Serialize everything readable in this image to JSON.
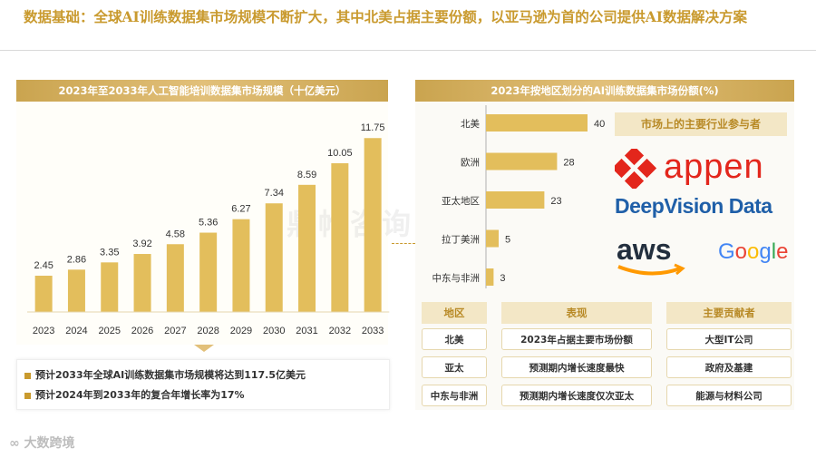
{
  "title": "数据基础：全球AI训练数据集市场规模不断扩大，其中北美占据主要份额，以亚马逊为首的公司提供AI数据解决方案",
  "chart_data": [
    {
      "type": "bar",
      "title": "2023年至2033年人工智能培训数据集市场规模（十亿美元）",
      "categories": [
        "2023",
        "2024",
        "2025",
        "2026",
        "2027",
        "2028",
        "2029",
        "2030",
        "2031",
        "2032",
        "2033"
      ],
      "values": [
        2.45,
        2.86,
        3.35,
        3.92,
        4.58,
        5.36,
        6.27,
        7.34,
        8.59,
        10.05,
        11.75
      ],
      "value_labels": [
        "2.45",
        "2.86",
        "3.35",
        "3.92",
        "4.58",
        "5.36",
        "6.27",
        "7.34",
        "8.59",
        "10.05",
        "11.75"
      ],
      "ylim": [
        0,
        12.5
      ],
      "grid": false,
      "color": "#e3be5c"
    },
    {
      "type": "bar",
      "orientation": "horizontal",
      "title": "2023年按地区划分的AI训练数据集市场份额(%)",
      "categories": [
        "北美",
        "欧洲",
        "亚太地区",
        "拉丁美洲",
        "中东与非洲"
      ],
      "values": [
        40,
        28,
        23,
        5,
        3
      ],
      "value_labels": [
        "40",
        "28",
        "23",
        "5",
        "3"
      ],
      "xlim": [
        0,
        46
      ],
      "grid": false,
      "color": "#e3be5c"
    }
  ],
  "notes": [
    "预计2033年全球AI训练数据集市场规模将达到117.5亿美元",
    "预计2024年到2033年的复合年增长率为17%"
  ],
  "participants_label": "市场上的主要行业参与者",
  "logos": {
    "appen": "appen",
    "deepvision": "DeepVision Data",
    "aws": "aws",
    "google": "Google"
  },
  "table": {
    "headers": [
      "地区",
      "表现",
      "主要贡献者"
    ],
    "rows": [
      [
        "北美",
        "2023年占据主要市场份额",
        "大型IT公司"
      ],
      [
        "亚太",
        "预测期内增长速度最快",
        "政府及基建"
      ],
      [
        "中东与非洲",
        "预测期内增长速度仅次亚太",
        "能源与材料公司"
      ]
    ]
  },
  "watermark": "鼎帷咨询",
  "footer": "大数跨境",
  "colors": {
    "gold": "#c99a2e",
    "bar": "#e3be5c",
    "header_bg": "#f3e7c6"
  }
}
